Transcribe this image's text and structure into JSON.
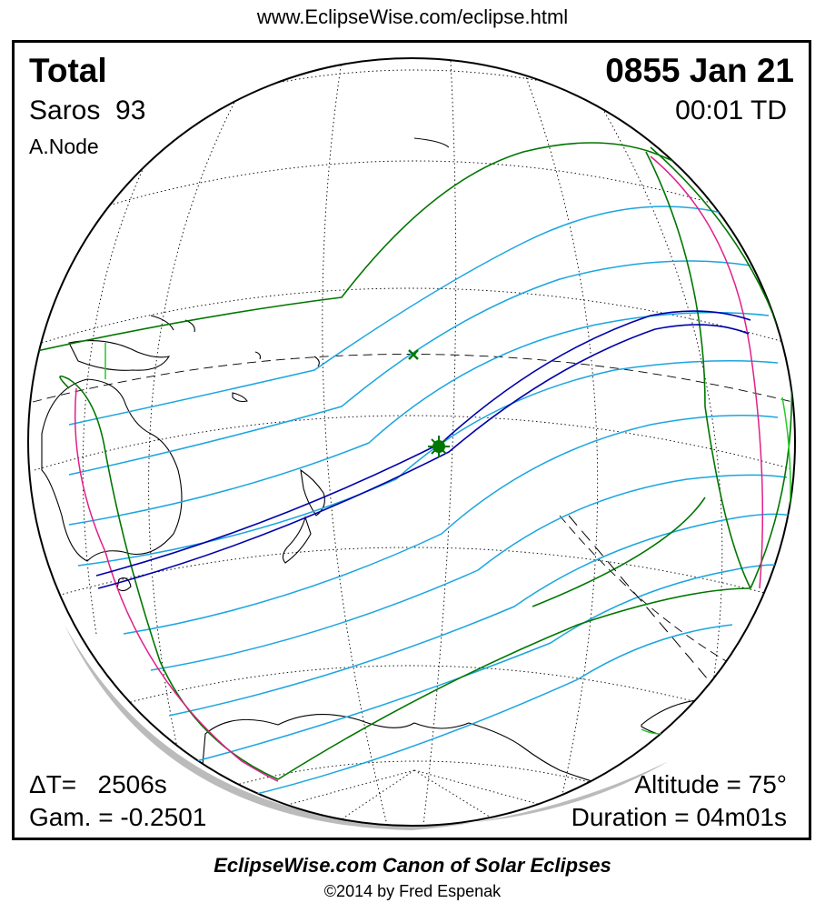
{
  "header": {
    "url": "www.EclipseWise.com/eclipse.html"
  },
  "eclipse": {
    "type": "Total",
    "saros_label": "Saros",
    "saros_number": "93",
    "node": "A.Node",
    "datetime": "0855 Jan 21",
    "td_time": "00:01 TD",
    "delta_t_label": "ΔT=",
    "delta_t": "2506s",
    "gamma_label": "Gam. =",
    "gamma": "-0.2501",
    "altitude_label": "Altitude =",
    "altitude": "75°",
    "duration_label": "Duration =",
    "duration": "04m01s"
  },
  "map": {
    "projection": "orthographic globe",
    "colors": {
      "background": "#ffffff",
      "coastline": "#000000",
      "graticule": "#000000",
      "penumbra_limits": "#007700",
      "umbra_path": "#0000aa",
      "magnitude_curves": "#1aa5e0",
      "rise_set_curves": "#e0208a",
      "terminator": "#22cc22",
      "shadow_rim": "#bbbbbb"
    },
    "markers": [
      {
        "name": "greatest-eclipse-marker",
        "symbol": "star",
        "color": "#007700"
      },
      {
        "name": "sub-solar-marker",
        "symbol": "x",
        "color": "#007700"
      }
    ]
  },
  "footer": {
    "canon": "EclipseWise.com Canon of Solar Eclipses",
    "copyright": "©2014 by Fred Espenak"
  }
}
